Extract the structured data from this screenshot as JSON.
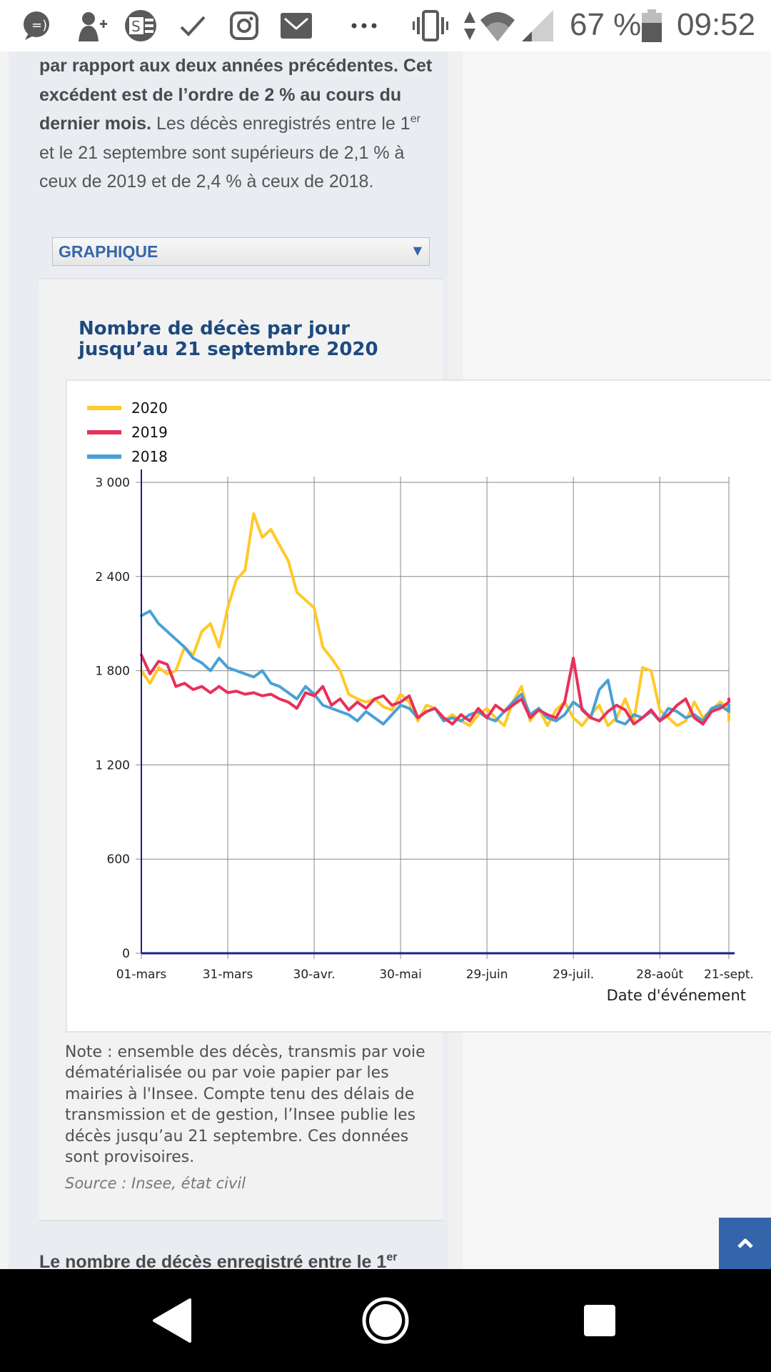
{
  "status_bar": {
    "icons": [
      "chat-bubble-icon",
      "add-contact-icon",
      "app-se-icon",
      "check-icon",
      "instagram-icon",
      "mail-icon",
      "more-dots-icon",
      "vibrate-icon",
      "data-arrows-icon",
      "wifi-icon",
      "signal-icon",
      "battery-icon"
    ],
    "battery": "67 %",
    "time": "09:52"
  },
  "intro": {
    "bold_1": "par rapport aux deux années précédentes. Cet excédent est de l’ordre de 2 % au cours du dernier mois.",
    "text_1": " Les décès enregistrés entre le 1",
    "sup_1": "er",
    "text_2": " et le 21 septembre sont supérieurs de 2,1 % à ceux de 2019 et de 2,4 % à ceux de 2018."
  },
  "select": {
    "label": "GRAPHIQUE",
    "arrow": "▼"
  },
  "chart_title": "Nombre de décès par jour jusqu’au 21 septembre 2020",
  "chart_data": {
    "type": "line",
    "title": "Nombre de décès par jour jusqu’au 21 septembre 2020",
    "xlabel": "Date d'événement",
    "ylabel": "",
    "ylim": [
      0,
      3000
    ],
    "yticks": [
      0,
      600,
      1200,
      1800,
      2400,
      3000
    ],
    "ytick_labels": [
      "0",
      "600",
      "1 200",
      "1 800",
      "2 400",
      "3 000"
    ],
    "xlim_days": [
      0,
      204
    ],
    "xticks_days": [
      0,
      30,
      60,
      90,
      120,
      150,
      180,
      204
    ],
    "xtick_labels": [
      "01-mars",
      "31-mars",
      "30-avr.",
      "30-mai",
      "29-juin",
      "29-juil.",
      "28-août",
      "21-sept."
    ],
    "grid": true,
    "legend": "top-left",
    "x_step_days": 3,
    "series": [
      {
        "name": "2020",
        "color": "#ffc928",
        "values": [
          1800,
          1720,
          1820,
          1780,
          1800,
          1950,
          1900,
          2050,
          2100,
          1950,
          2200,
          2380,
          2440,
          2800,
          2650,
          2700,
          2600,
          2500,
          2300,
          2250,
          2200,
          1950,
          1880,
          1800,
          1650,
          1620,
          1600,
          1620,
          1570,
          1550,
          1650,
          1600,
          1480,
          1580,
          1560,
          1480,
          1520,
          1480,
          1450,
          1520,
          1560,
          1500,
          1450,
          1600,
          1700,
          1480,
          1560,
          1450,
          1550,
          1600,
          1500,
          1450,
          1520,
          1580,
          1450,
          1500,
          1620,
          1480,
          1820,
          1800,
          1550,
          1500,
          1450,
          1480,
          1600,
          1500,
          1550,
          1600,
          1560,
          1480
        ]
      },
      {
        "name": "2019",
        "color": "#e8305a",
        "values": [
          1900,
          1780,
          1860,
          1840,
          1700,
          1720,
          1680,
          1700,
          1660,
          1700,
          1660,
          1670,
          1650,
          1660,
          1640,
          1650,
          1620,
          1600,
          1560,
          1660,
          1640,
          1700,
          1580,
          1620,
          1550,
          1600,
          1560,
          1620,
          1640,
          1580,
          1600,
          1640,
          1500,
          1540,
          1560,
          1500,
          1460,
          1520,
          1480,
          1560,
          1500,
          1580,
          1540,
          1580,
          1620,
          1500,
          1550,
          1520,
          1500,
          1600,
          1880,
          1550,
          1500,
          1480,
          1540,
          1580,
          1550,
          1460,
          1500,
          1550,
          1480,
          1520,
          1580,
          1620,
          1500,
          1460,
          1540,
          1560,
          1600,
          1620
        ]
      },
      {
        "name": "2018",
        "color": "#4aa0d6",
        "values": [
          2150,
          2180,
          2100,
          2050,
          2000,
          1950,
          1880,
          1850,
          1800,
          1880,
          1820,
          1800,
          1780,
          1760,
          1800,
          1720,
          1700,
          1660,
          1620,
          1700,
          1650,
          1580,
          1560,
          1540,
          1520,
          1480,
          1540,
          1500,
          1460,
          1520,
          1580,
          1560,
          1500,
          1540,
          1560,
          1480,
          1500,
          1480,
          1520,
          1540,
          1500,
          1480,
          1540,
          1600,
          1650,
          1520,
          1560,
          1500,
          1480,
          1520,
          1600,
          1560,
          1500,
          1680,
          1740,
          1480,
          1460,
          1520,
          1500,
          1540,
          1480,
          1560,
          1540,
          1500,
          1520,
          1480,
          1560,
          1580,
          1540,
          1580
        ]
      }
    ]
  },
  "note": "Note : ensemble des décès, transmis par voie dématérialisée ou par voie papier par les mairies à l'Insee. Compte tenu des délais de transmission et de gestion, l’Insee publie les décès jusqu’au 21 septembre. Ces données sont provisoires.",
  "source": "Source : Insee, état civil",
  "next_heading": {
    "text": "Le nombre de décès enregistré entre le 1",
    "sup": "er"
  },
  "back_to_top": {
    "icon": "chevron-up-icon",
    "color": "#3465ab"
  },
  "nav_bar": {
    "buttons": [
      "back-icon",
      "home-icon",
      "recents-icon"
    ]
  }
}
